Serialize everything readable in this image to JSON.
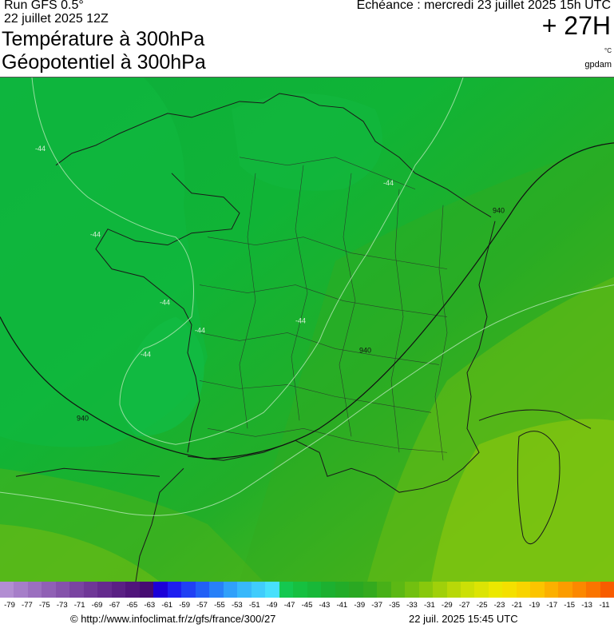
{
  "header": {
    "run": "Run GFS 0.5°",
    "run_date": "22 juillet 2025 12Z",
    "title_temp": "Température à 300hPa",
    "title_geo": "Géopotentiel à 300hPa",
    "valid": "Echéance : mercredi 23 juillet 2025 15h UTC",
    "lead": "+ 27H",
    "unit_temp": "°C",
    "unit_geo": "gpdam"
  },
  "map": {
    "isotherm_labels": [
      "-44",
      "-44",
      "-44",
      "-44",
      "-44",
      "-44",
      "-44"
    ],
    "geopotential_labels": [
      "940",
      "940",
      "940"
    ]
  },
  "legend": {
    "colors": [
      "#b28ed2",
      "#a67ec9",
      "#9b6fbf",
      "#9060b5",
      "#8552ab",
      "#7a44a1",
      "#6f3797",
      "#652b8e",
      "#5a2084",
      "#50157b",
      "#460c72",
      "#1c00d8",
      "#1e1ef0",
      "#2040f4",
      "#2260f6",
      "#2880f8",
      "#30a0fa",
      "#38b8fb",
      "#40ccfc",
      "#48e0fc",
      "#14c850",
      "#16c040",
      "#18b838",
      "#1cb030",
      "#22ac28",
      "#2aa822",
      "#34aa1e",
      "#48b018",
      "#5cb814",
      "#72c010",
      "#88c80c",
      "#a0d00a",
      "#b8d808",
      "#cce006",
      "#dce404",
      "#ece800",
      "#f4e000",
      "#f8d400",
      "#fcc400",
      "#fcb000",
      "#fc9c00",
      "#fc8800",
      "#fa7400",
      "#f85c00"
    ],
    "labels": [
      "-79",
      "-77",
      "-75",
      "-73",
      "-71",
      "-69",
      "-67",
      "-65",
      "-63",
      "-61",
      "-59",
      "-57",
      "-55",
      "-53",
      "-51",
      "-49",
      "-47",
      "-45",
      "-43",
      "-41",
      "-39",
      "-37",
      "-35",
      "-33",
      "-31",
      "-29",
      "-27",
      "-25",
      "-23",
      "-21",
      "-19",
      "-17",
      "-15",
      "-13",
      "-11"
    ]
  },
  "footer": {
    "url": "© http://www.infoclimat.fr/z/gfs/france/300/27",
    "generated": "22 juil. 2025 15:45 UTC"
  }
}
